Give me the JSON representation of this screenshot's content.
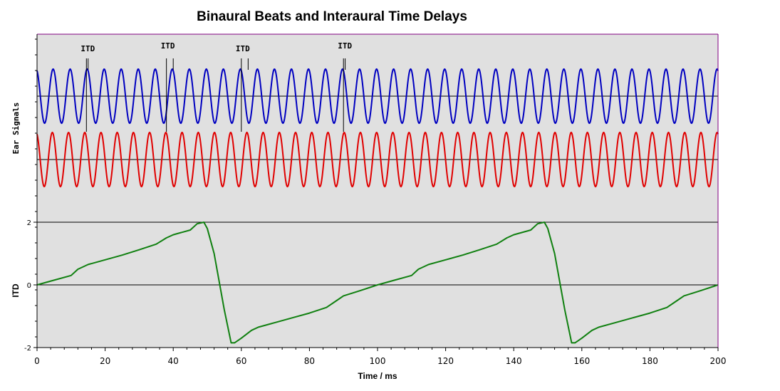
{
  "chart_data": [
    {
      "type": "line",
      "title": "Binaural Beats and Interaural Time Delays",
      "ylabel": "Ear Signals",
      "xlim": [
        0,
        200
      ],
      "series": [
        {
          "signal": "sine",
          "frequency_hz": 200,
          "color": "#0000c0"
        },
        {
          "signal": "sine",
          "frequency_hz": 210,
          "color": "#e00000"
        }
      ],
      "annotations": [
        {
          "text": "ITD",
          "times": [
            14.5,
            15
          ]
        },
        {
          "text": "ITD",
          "times": [
            38,
            40
          ]
        },
        {
          "text": "ITD",
          "times": [
            60,
            62
          ]
        },
        {
          "text": "ITD",
          "times": [
            90,
            90.5
          ]
        }
      ]
    },
    {
      "type": "line",
      "xlabel": "Time / ms",
      "ylabel": "ITD",
      "xlim": [
        0,
        200
      ],
      "ylim": [
        -2,
        2
      ],
      "xticks": [
        0,
        20,
        40,
        60,
        80,
        100,
        120,
        140,
        160,
        180,
        200
      ],
      "yticks": [
        -2,
        0,
        2
      ],
      "color": "#108010",
      "points": [
        [
          0,
          0
        ],
        [
          5,
          0.15
        ],
        [
          10,
          0.3
        ],
        [
          12,
          0.5
        ],
        [
          15,
          0.65
        ],
        [
          20,
          0.8
        ],
        [
          25,
          0.95
        ],
        [
          30,
          1.12
        ],
        [
          35,
          1.3
        ],
        [
          38,
          1.5
        ],
        [
          40,
          1.6
        ],
        [
          45,
          1.75
        ],
        [
          47,
          1.95
        ],
        [
          49,
          2.0
        ],
        [
          50,
          1.8
        ],
        [
          52,
          1.0
        ],
        [
          55,
          -0.8
        ],
        [
          57,
          -1.85
        ],
        [
          58,
          -1.85
        ],
        [
          60,
          -1.7
        ],
        [
          63,
          -1.45
        ],
        [
          65,
          -1.35
        ],
        [
          70,
          -1.2
        ],
        [
          75,
          -1.05
        ],
        [
          80,
          -0.9
        ],
        [
          85,
          -0.72
        ],
        [
          88,
          -0.5
        ],
        [
          90,
          -0.35
        ],
        [
          95,
          -0.18
        ],
        [
          100,
          0
        ],
        [
          105,
          0.15
        ],
        [
          110,
          0.3
        ],
        [
          112,
          0.5
        ],
        [
          115,
          0.65
        ],
        [
          120,
          0.8
        ],
        [
          125,
          0.95
        ],
        [
          130,
          1.12
        ],
        [
          135,
          1.3
        ],
        [
          138,
          1.5
        ],
        [
          140,
          1.6
        ],
        [
          145,
          1.75
        ],
        [
          147,
          1.95
        ],
        [
          149,
          2.0
        ],
        [
          150,
          1.8
        ],
        [
          152,
          1.0
        ],
        [
          155,
          -0.8
        ],
        [
          157,
          -1.85
        ],
        [
          158,
          -1.85
        ],
        [
          160,
          -1.7
        ],
        [
          163,
          -1.45
        ],
        [
          165,
          -1.35
        ],
        [
          170,
          -1.2
        ],
        [
          175,
          -1.05
        ],
        [
          180,
          -0.9
        ],
        [
          185,
          -0.72
        ],
        [
          188,
          -0.5
        ],
        [
          190,
          -0.35
        ],
        [
          195,
          -0.18
        ],
        [
          200,
          0
        ]
      ]
    }
  ],
  "plot_background": "#e0e0e0",
  "frame_color": "#800080"
}
